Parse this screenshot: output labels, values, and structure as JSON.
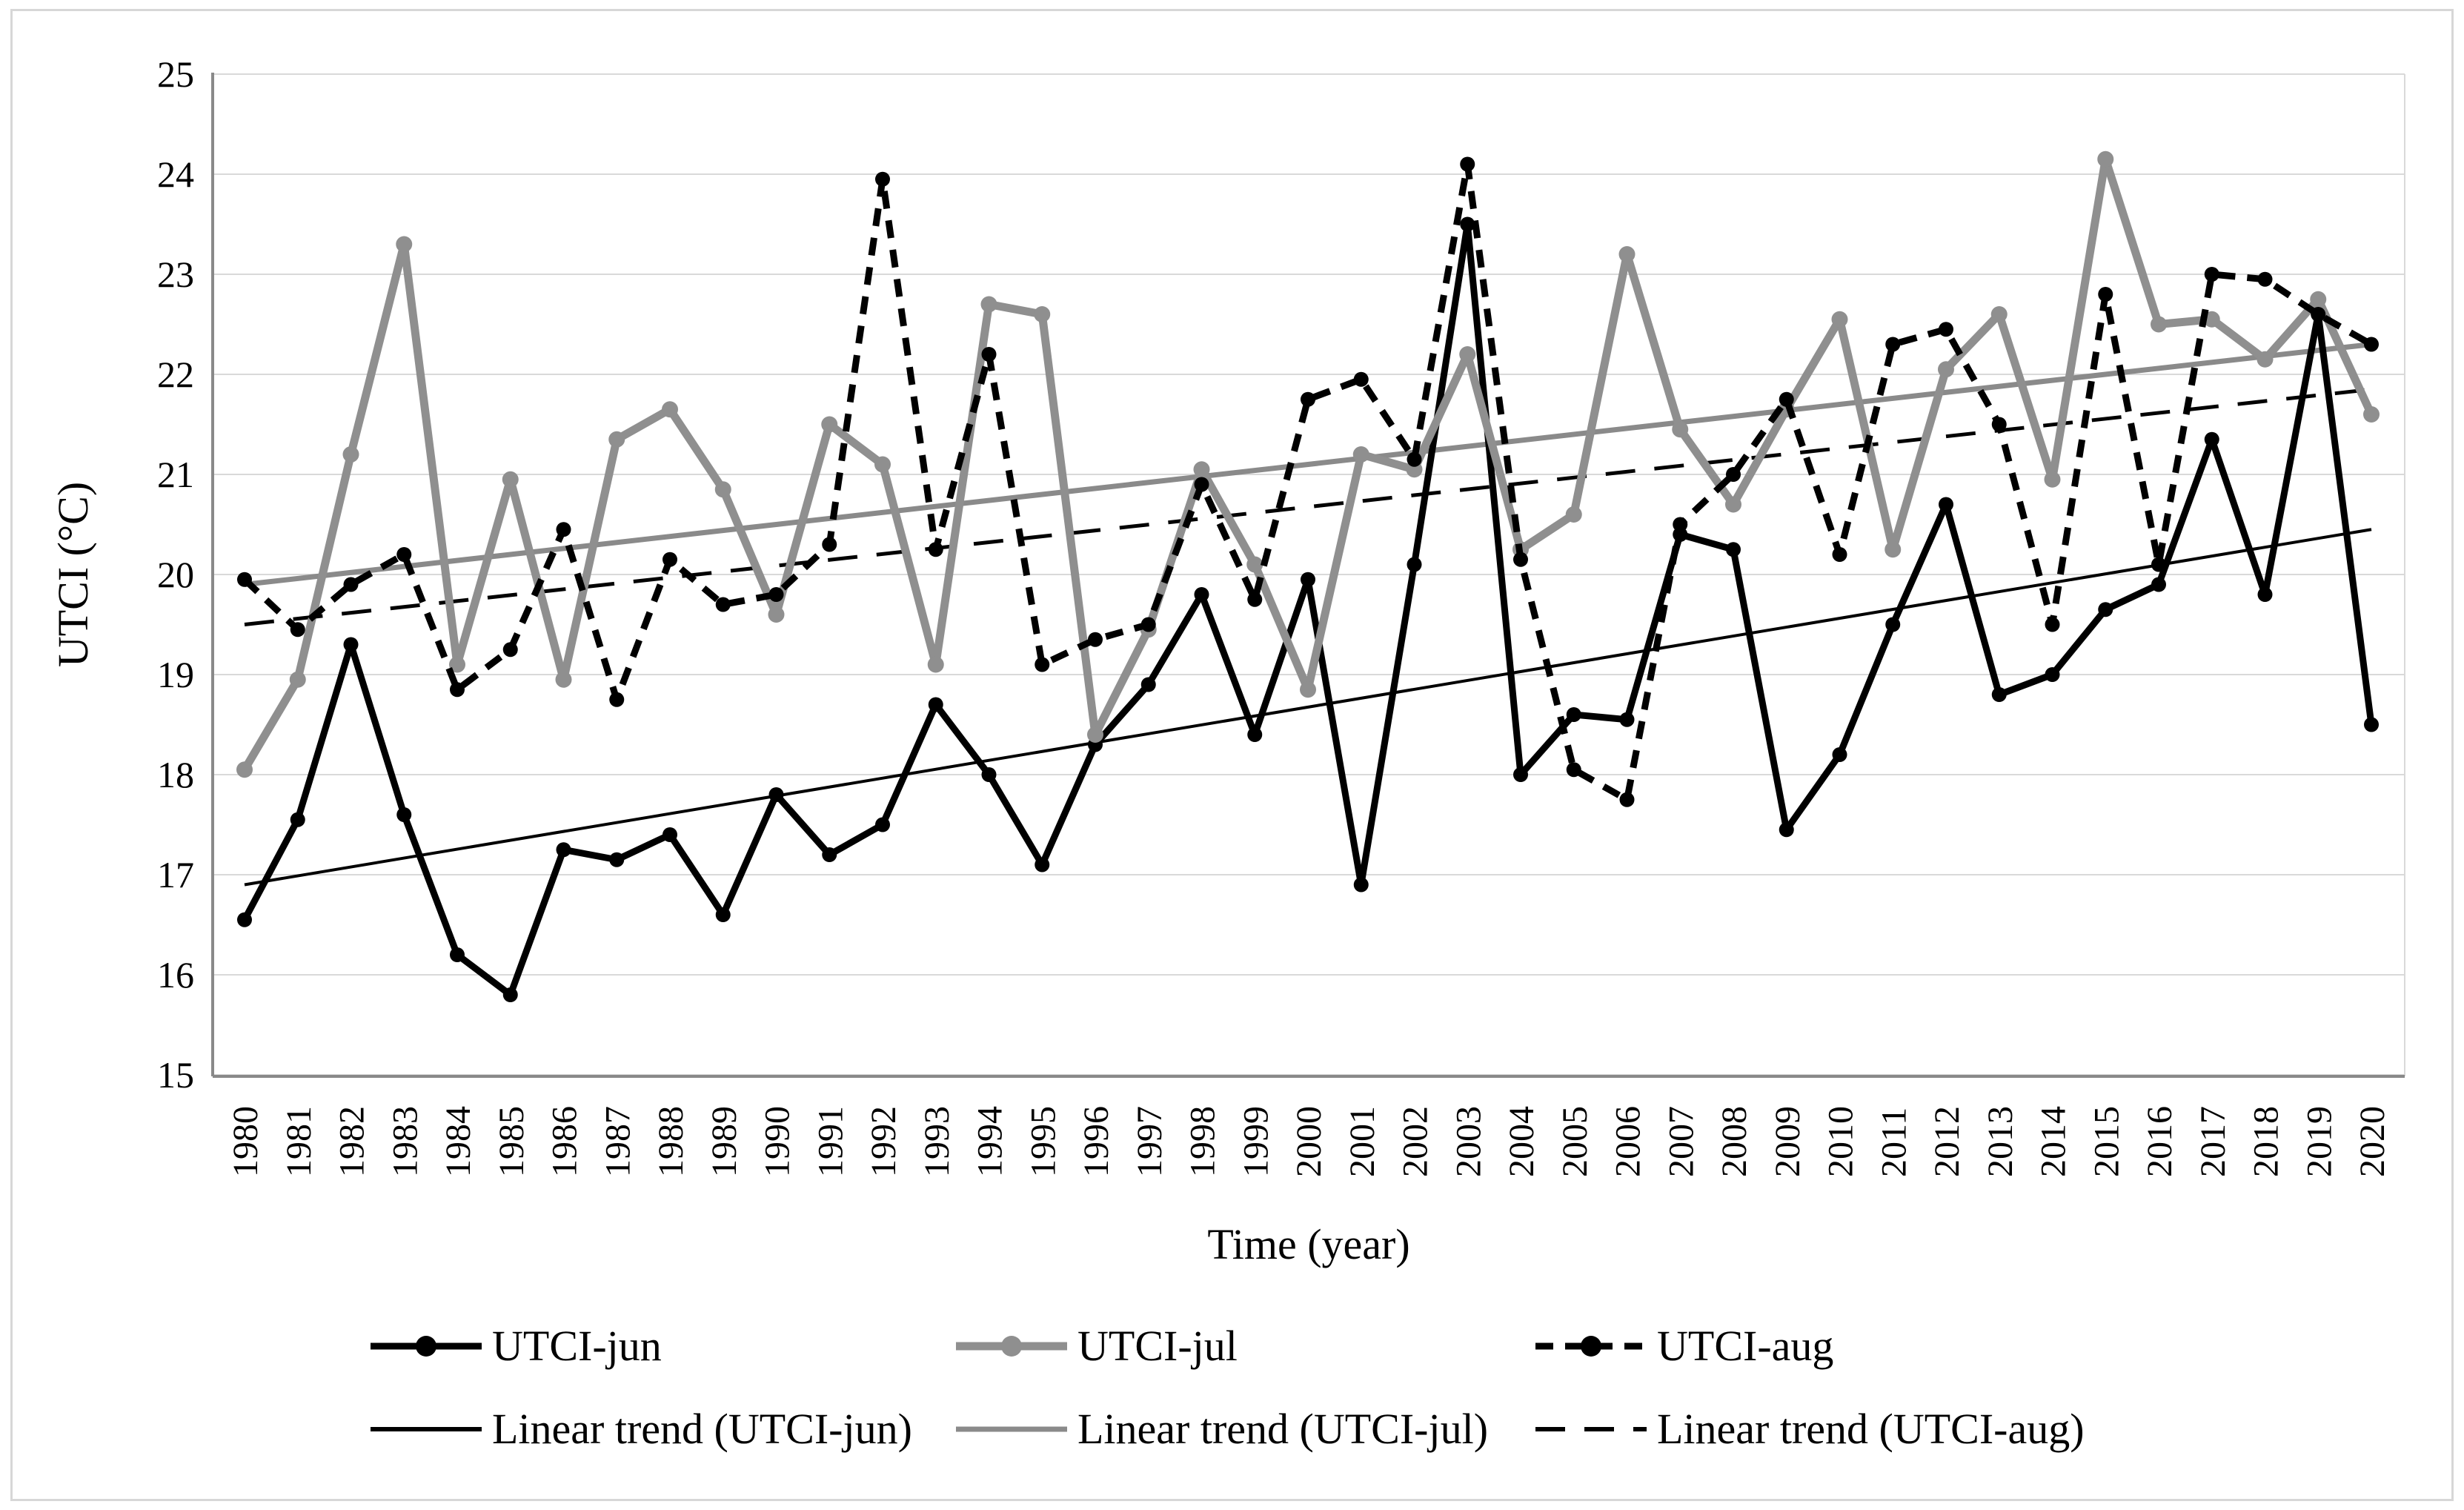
{
  "chart_data": {
    "type": "line",
    "title": "",
    "xlabel": "Time (year)",
    "ylabel": "UTCI (°C)",
    "ylim": [
      15,
      25
    ],
    "ytick_step": 1,
    "grid": true,
    "legend_position": "bottom",
    "categories": [
      1980,
      1981,
      1982,
      1983,
      1984,
      1985,
      1986,
      1987,
      1988,
      1989,
      1990,
      1991,
      1992,
      1993,
      1994,
      1995,
      1996,
      1997,
      1998,
      1999,
      2000,
      2001,
      2002,
      2003,
      2004,
      2005,
      2006,
      2007,
      2008,
      2009,
      2010,
      2011,
      2012,
      2013,
      2014,
      2015,
      2016,
      2017,
      2018,
      2019,
      2020
    ],
    "series": [
      {
        "name": "UTCI-jun",
        "color": "#000000",
        "dash": null,
        "width": 9,
        "marker_radius": 10,
        "values": [
          16.55,
          17.55,
          19.3,
          17.6,
          16.2,
          15.8,
          17.25,
          17.15,
          17.4,
          16.6,
          17.8,
          17.2,
          17.5,
          18.7,
          18.0,
          17.1,
          18.3,
          18.9,
          19.8,
          18.4,
          19.95,
          16.9,
          20.1,
          23.5,
          18.0,
          18.6,
          18.55,
          20.4,
          20.25,
          17.45,
          18.2,
          19.5,
          20.7,
          18.8,
          19.0,
          19.65,
          19.9,
          21.35,
          19.8,
          22.6,
          18.5
        ]
      },
      {
        "name": "UTCI-jul",
        "color": "#8f8f8f",
        "dash": null,
        "width": 11,
        "marker_radius": 11,
        "values": [
          18.05,
          18.95,
          21.2,
          23.3,
          19.1,
          20.95,
          18.95,
          21.35,
          21.65,
          20.85,
          19.6,
          21.5,
          21.1,
          19.1,
          22.7,
          22.6,
          18.4,
          19.45,
          21.05,
          20.1,
          18.85,
          21.2,
          21.05,
          22.2,
          20.25,
          20.6,
          23.2,
          21.45,
          20.7,
          21.65,
          22.55,
          20.25,
          22.05,
          22.6,
          20.95,
          24.15,
          22.5,
          22.55,
          22.15,
          22.75,
          21.6
        ]
      },
      {
        "name": "UTCI-aug",
        "color": "#000000",
        "dash": [
          24,
          16
        ],
        "width": 9,
        "marker_radius": 10,
        "values": [
          19.95,
          19.45,
          19.9,
          20.2,
          18.85,
          19.25,
          20.45,
          18.75,
          20.15,
          19.7,
          19.8,
          20.3,
          23.95,
          20.25,
          22.2,
          19.1,
          19.35,
          19.5,
          20.9,
          19.75,
          21.75,
          21.95,
          21.15,
          24.1,
          20.15,
          18.05,
          17.75,
          20.5,
          21.0,
          21.75,
          20.2,
          22.3,
          22.45,
          21.5,
          19.5,
          22.8,
          20.1,
          23.0,
          22.95,
          22.6,
          22.3
        ]
      }
    ],
    "trends": [
      {
        "name": "Linear trend (UTCI-jun)",
        "color": "#000000",
        "dash": null,
        "width": 4,
        "start": 16.9,
        "end": 20.45
      },
      {
        "name": "Linear trend (UTCI-jul)",
        "color": "#8a8a8a",
        "dash": null,
        "width": 7,
        "start": 19.9,
        "end": 22.3
      },
      {
        "name": "Linear trend (UTCI-aug)",
        "color": "#000000",
        "dash": [
          40,
          26
        ],
        "width": 5,
        "start": 19.5,
        "end": 21.85
      }
    ],
    "yticks": [
      15,
      16,
      17,
      18,
      19,
      20,
      21,
      22,
      23,
      24,
      25
    ]
  },
  "colors": {
    "gridline": "#d9d9d9",
    "axis": "#898989",
    "text": "#000000",
    "background": "#ffffff"
  }
}
